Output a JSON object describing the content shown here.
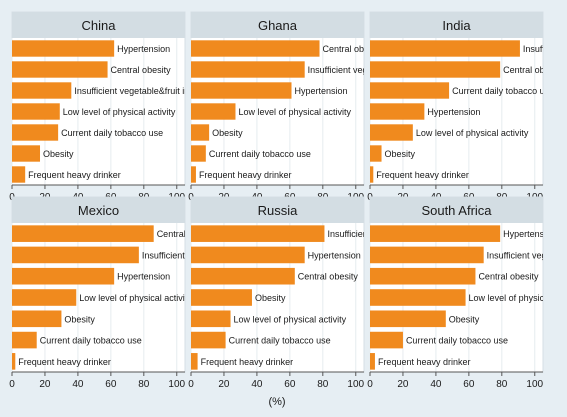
{
  "chart_data": {
    "type": "bar",
    "orientation": "horizontal",
    "xlabel": "(%)",
    "xlim": [
      0,
      105
    ],
    "xticks": [
      0,
      20,
      40,
      60,
      80,
      100
    ],
    "bar_color": "#f08a1e",
    "panel_header_color": "#d3dde3",
    "background_color": "#e6eef3",
    "panels": [
      {
        "title": "China",
        "bars": [
          {
            "label": "Hypertension",
            "value": 62
          },
          {
            "label": "Central obesity",
            "value": 58
          },
          {
            "label": "Insufficient vegetable&fruit intake",
            "value": 36
          },
          {
            "label": "Low level of physical activity",
            "value": 29
          },
          {
            "label": "Current daily tobacco use",
            "value": 28
          },
          {
            "label": "Obesity",
            "value": 17
          },
          {
            "label": "Frequent heavy drinker",
            "value": 8
          }
        ]
      },
      {
        "title": "Ghana",
        "bars": [
          {
            "label": "Central obesity",
            "value": 78
          },
          {
            "label": "Insufficient vegetable&fruit intake",
            "value": 69
          },
          {
            "label": "Hypertension",
            "value": 61
          },
          {
            "label": "Low level of physical activity",
            "value": 27
          },
          {
            "label": "Obesity",
            "value": 11
          },
          {
            "label": "Current daily tobacco use",
            "value": 9
          },
          {
            "label": "Frequent heavy drinker",
            "value": 3
          }
        ]
      },
      {
        "title": "India",
        "bars": [
          {
            "label": "Insufficient vegetable&fruit intake",
            "value": 91
          },
          {
            "label": "Central obesity",
            "value": 79
          },
          {
            "label": "Current daily tobacco use",
            "value": 48
          },
          {
            "label": "Hypertension",
            "value": 33
          },
          {
            "label": "Low level of physical activity",
            "value": 26
          },
          {
            "label": "Obesity",
            "value": 7
          },
          {
            "label": "Frequent heavy drinker",
            "value": 2
          }
        ]
      },
      {
        "title": "Mexico",
        "bars": [
          {
            "label": "Central obesity",
            "value": 86
          },
          {
            "label": "Insufficient vegetable&fruit intake",
            "value": 77
          },
          {
            "label": "Hypertension",
            "value": 62
          },
          {
            "label": "Low level of physical activity",
            "value": 39
          },
          {
            "label": "Obesity",
            "value": 30
          },
          {
            "label": "Current daily tobacco use",
            "value": 15
          },
          {
            "label": "Frequent heavy drinker",
            "value": 2
          }
        ]
      },
      {
        "title": "Russia",
        "bars": [
          {
            "label": "Insufficient vegetable&fruit intake",
            "value": 81
          },
          {
            "label": "Hypertension",
            "value": 69
          },
          {
            "label": "Central obesity",
            "value": 63
          },
          {
            "label": "Obesity",
            "value": 37
          },
          {
            "label": "Low level of physical activity",
            "value": 24
          },
          {
            "label": "Current daily tobacco use",
            "value": 21
          },
          {
            "label": "Frequent heavy drinker",
            "value": 4
          }
        ]
      },
      {
        "title": "South Africa",
        "bars": [
          {
            "label": "Hypertension",
            "value": 79
          },
          {
            "label": "Insufficient vegetable&fruit intake",
            "value": 69
          },
          {
            "label": "Central obesity",
            "value": 64
          },
          {
            "label": "Low level of physical activity",
            "value": 58
          },
          {
            "label": "Obesity",
            "value": 46
          },
          {
            "label": "Current daily tobacco use",
            "value": 20
          },
          {
            "label": "Frequent heavy drinker",
            "value": 3
          }
        ]
      }
    ]
  }
}
